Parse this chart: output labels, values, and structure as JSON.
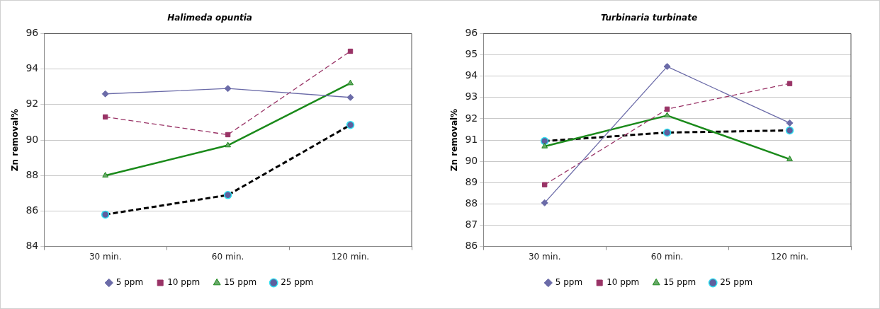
{
  "chart_data": [
    {
      "type": "line",
      "title": "Halimeda opuntia",
      "ylabel": "Zn removal%",
      "categories": [
        "30 min.",
        "60 min.",
        "120 min."
      ],
      "ylim": [
        84,
        96
      ],
      "yticks": [
        84,
        86,
        88,
        90,
        92,
        94,
        96
      ],
      "grid": "y",
      "legend": "bottom",
      "series": [
        {
          "name": "5 ppm",
          "color": "#6b6ba8",
          "marker": "diamond",
          "line_style": "solid",
          "values": [
            92.6,
            92.9,
            92.4
          ]
        },
        {
          "name": "10 ppm",
          "color": "#993366",
          "marker": "square",
          "line_style": "dashed",
          "values": [
            91.3,
            90.3,
            95.0
          ]
        },
        {
          "name": "15 ppm",
          "color": "#1a8a1a",
          "marker": "triangle",
          "line_style": "solid",
          "values": [
            88.0,
            89.7,
            93.2
          ]
        },
        {
          "name": "25 ppm",
          "color": "#000000",
          "marker": "circle",
          "line_style": "dashed",
          "values": [
            85.8,
            86.9,
            90.85
          ]
        }
      ]
    },
    {
      "type": "line",
      "title": "Turbinaria turbinate",
      "ylabel": "Zn removal%",
      "categories": [
        "30 min.",
        "60 min.",
        "120 min."
      ],
      "ylim": [
        86,
        96
      ],
      "yticks": [
        86,
        87,
        88,
        89,
        90,
        91,
        92,
        93,
        94,
        95,
        96
      ],
      "grid": "y",
      "legend": "bottom",
      "series": [
        {
          "name": "5 ppm",
          "color": "#6b6ba8",
          "marker": "diamond",
          "line_style": "solid",
          "values": [
            88.05,
            94.45,
            91.8
          ]
        },
        {
          "name": "10 ppm",
          "color": "#993366",
          "marker": "square",
          "line_style": "dashed",
          "values": [
            88.9,
            92.45,
            93.65
          ]
        },
        {
          "name": "15 ppm",
          "color": "#1a8a1a",
          "marker": "triangle",
          "line_style": "solid",
          "values": [
            90.7,
            92.15,
            90.1
          ]
        },
        {
          "name": "25 ppm",
          "color": "#000000",
          "marker": "circle",
          "line_style": "dashed",
          "values": [
            90.95,
            91.35,
            91.45
          ]
        }
      ]
    }
  ]
}
